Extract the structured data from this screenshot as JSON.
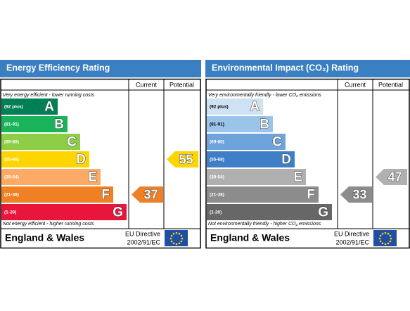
{
  "panels": [
    {
      "title": "Energy Efficiency Rating",
      "headers": [
        "Current",
        "Potential"
      ],
      "top_note": "Very energy efficient - lower running costs",
      "bottom_note": "Not energy efficient - higher running costs",
      "bands": [
        {
          "range": "(92 plus)",
          "letter": "A",
          "color": "#008054"
        },
        {
          "range": "(81-91)",
          "letter": "B",
          "color": "#19b459"
        },
        {
          "range": "(69-80)",
          "letter": "C",
          "color": "#8dce46"
        },
        {
          "range": "(55-68)",
          "letter": "D",
          "color": "#ffd500"
        },
        {
          "range": "(39-54)",
          "letter": "E",
          "color": "#fcaa65"
        },
        {
          "range": "(21-38)",
          "letter": "F",
          "color": "#ef8023"
        },
        {
          "range": "(1-20)",
          "letter": "G",
          "color": "#e9153b"
        }
      ],
      "current": 37,
      "potential": 55,
      "footer": {
        "region": "England & Wales",
        "directive": "EU Directive",
        "code": "2002/91/EC"
      }
    },
    {
      "title": "Environmental Impact (CO₂) Rating",
      "headers": [
        "Current",
        "Potential"
      ],
      "top_note": "Very environmentally friendly - lower CO₂ emissions",
      "bottom_note": "Not environmentally friendly - higher CO₂ emissions",
      "bands": [
        {
          "range": "(92 plus)",
          "letter": "A",
          "color": "#cfe2f3"
        },
        {
          "range": "(81-91)",
          "letter": "B",
          "color": "#9ac4ea"
        },
        {
          "range": "(69-80)",
          "letter": "C",
          "color": "#6fa3dc"
        },
        {
          "range": "(55-68)",
          "letter": "D",
          "color": "#3f7fc7"
        },
        {
          "range": "(39-54)",
          "letter": "E",
          "color": "#b0b0b0"
        },
        {
          "range": "(21-38)",
          "letter": "F",
          "color": "#8c8c8c"
        },
        {
          "range": "(1-20)",
          "letter": "G",
          "color": "#676767"
        }
      ],
      "current": 33,
      "potential": 47,
      "footer": {
        "region": "England & Wales",
        "directive": "EU Directive",
        "code": "2002/91/EC"
      }
    }
  ]
}
